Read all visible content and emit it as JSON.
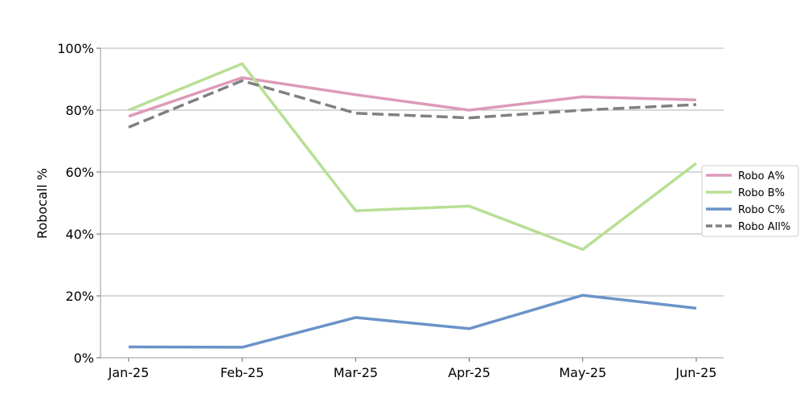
{
  "chart_data": {
    "type": "line",
    "categories": [
      "Jan-25",
      "Feb-25",
      "Mar-25",
      "Apr-25",
      "May-25",
      "Jun-25"
    ],
    "ylabel": "Robocall %",
    "xlabel": "",
    "ylim": [
      0,
      100
    ],
    "yticks": [
      "0%",
      "20%",
      "40%",
      "60%",
      "80%",
      "100%"
    ],
    "grid": "horizontal",
    "legend_position": "right",
    "series": [
      {
        "name": "Robo A%",
        "color": "#dd9ab9",
        "dashed": false,
        "values": [
          78,
          90.5,
          85,
          80,
          84.3,
          83.3
        ]
      },
      {
        "name": "Robo B%",
        "color": "#b8df95",
        "dashed": false,
        "values": [
          80,
          95,
          47.5,
          49,
          35,
          62.8
        ]
      },
      {
        "name": "Robo C%",
        "color": "#6a93c8",
        "dashed": false,
        "values": [
          3.5,
          3.4,
          13,
          9.4,
          20.2,
          16
        ]
      },
      {
        "name": "Robo All%",
        "color": "#808080",
        "dashed": true,
        "values": [
          74.5,
          89.5,
          79,
          77.5,
          80,
          81.8
        ]
      }
    ]
  }
}
